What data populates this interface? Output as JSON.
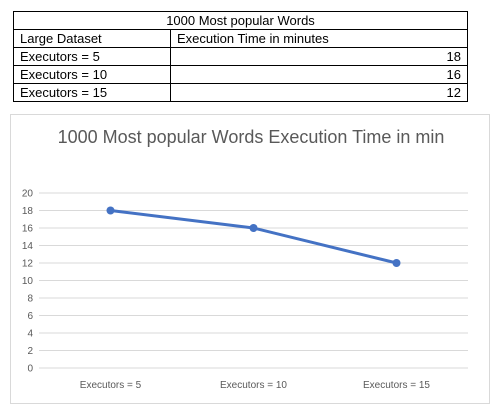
{
  "table": {
    "title": "1000 Most popular Words",
    "headers": [
      "Large Dataset",
      "Execution Time in minutes"
    ],
    "rows": [
      {
        "label": "Executors = 5",
        "value": "18"
      },
      {
        "label": "Executors = 10",
        "value": "16"
      },
      {
        "label": "Executors = 15",
        "value": "12"
      }
    ]
  },
  "chart_data": {
    "type": "line",
    "title": "1000 Most popular Words Execution Time in min",
    "categories": [
      "Executors = 5",
      "Executors = 10",
      "Executors = 15"
    ],
    "series": [
      {
        "name": "Execution Time in minutes",
        "values": [
          18,
          16,
          12
        ]
      }
    ],
    "ylim": [
      0,
      20
    ],
    "yticks": [
      0,
      2,
      4,
      6,
      8,
      10,
      12,
      14,
      16,
      18,
      20
    ],
    "xlabel": "",
    "ylabel": "",
    "grid": true,
    "line_color": "#4472c4"
  }
}
